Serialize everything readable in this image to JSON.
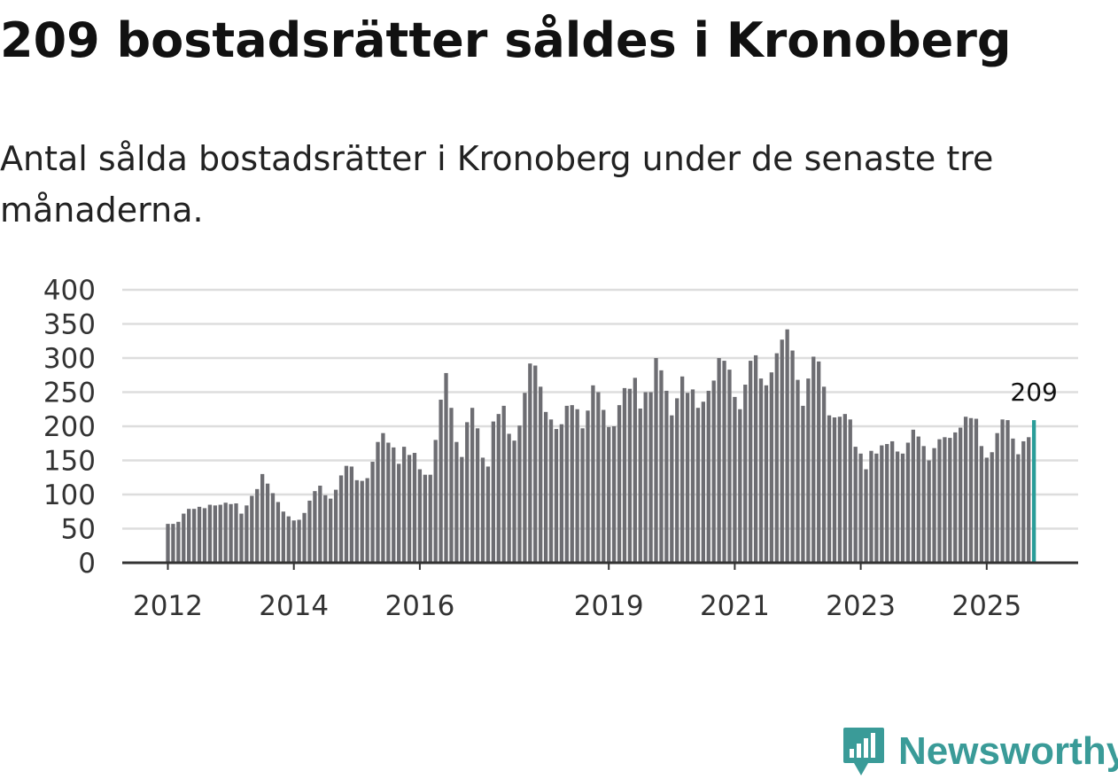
{
  "title": "209 bostadsrätter såldes i Kronoberg",
  "subtitle": "Antal sålda bostadsrätter i Kronoberg under de senaste tre månaderna.",
  "brand": {
    "name": "Newsworthy",
    "icon": "newsworthy-logo-icon",
    "color": "#3a9b98"
  },
  "chart_data": {
    "type": "bar",
    "title": "",
    "xlabel": "",
    "ylabel": "",
    "ylim": [
      0,
      400
    ],
    "y_ticks": [
      0,
      50,
      100,
      150,
      200,
      250,
      300,
      350,
      400
    ],
    "y_tick_labels": [
      "0",
      "50",
      "100",
      "150",
      "200",
      "250",
      "300",
      "350",
      "400"
    ],
    "x_tick_labels": [
      {
        "label": "2012",
        "index": 0
      },
      {
        "label": "2014",
        "index": 24
      },
      {
        "label": "2016",
        "index": 48
      },
      {
        "label": "2019",
        "index": 84
      },
      {
        "label": "2021",
        "index": 108
      },
      {
        "label": "2023",
        "index": 132
      },
      {
        "label": "2025",
        "index": 156
      }
    ],
    "bar_color": "#6d6d72",
    "highlight_color": "#2a9d99",
    "highlight_label": "209",
    "values": [
      57,
      57,
      60,
      72,
      79,
      79,
      82,
      80,
      85,
      84,
      85,
      88,
      86,
      87,
      72,
      84,
      98,
      108,
      130,
      116,
      102,
      89,
      75,
      68,
      62,
      63,
      73,
      91,
      105,
      113,
      99,
      94,
      107,
      128,
      142,
      141,
      121,
      120,
      124,
      148,
      177,
      190,
      176,
      169,
      145,
      170,
      158,
      161,
      137,
      129,
      129,
      180,
      239,
      278,
      227,
      177,
      155,
      206,
      227,
      197,
      154,
      141,
      207,
      218,
      230,
      189,
      179,
      201,
      249,
      292,
      289,
      258,
      221,
      210,
      196,
      203,
      230,
      231,
      225,
      197,
      223,
      260,
      250,
      224,
      199,
      200,
      231,
      256,
      255,
      271,
      226,
      250,
      250,
      300,
      282,
      252,
      216,
      241,
      273,
      249,
      254,
      227,
      236,
      252,
      267,
      300,
      296,
      283,
      243,
      225,
      261,
      296,
      304,
      270,
      260,
      279,
      307,
      327,
      342,
      311,
      268,
      230,
      270,
      302,
      295,
      258,
      216,
      213,
      214,
      218,
      210,
      170,
      160,
      137,
      164,
      160,
      172,
      174,
      178,
      163,
      160,
      176,
      195,
      185,
      171,
      150,
      168,
      181,
      184,
      183,
      191,
      198,
      214,
      212,
      211,
      171,
      154,
      162,
      190,
      210,
      209,
      182,
      159,
      178,
      184,
      209
    ]
  }
}
